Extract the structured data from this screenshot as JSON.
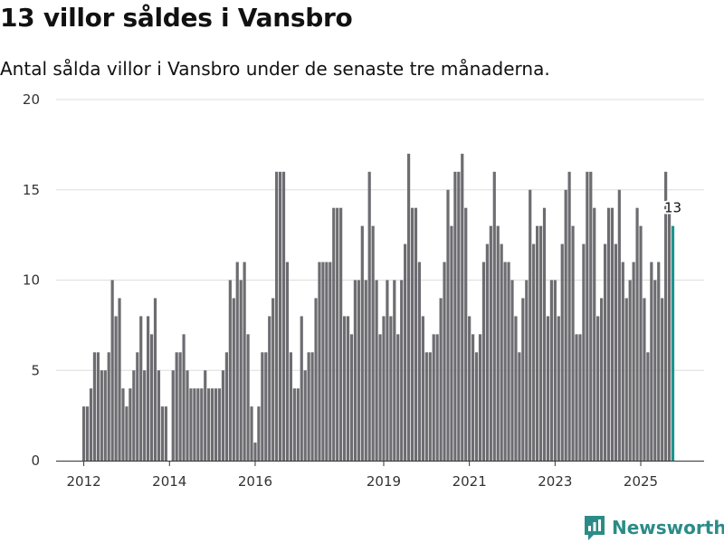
{
  "title": "13 villor såldes i Vansbro",
  "subtitle": "Antal sålda villor i Vansbro under de senaste tre månaderna.",
  "brand": "Newsworthy",
  "colors": {
    "bar": "#6d6c71",
    "highlight": "#1a9490",
    "grid": "#dddddd",
    "brand": "#2b8c87"
  },
  "chart_data": {
    "type": "bar",
    "title": "13 villor såldes i Vansbro",
    "xlabel": "",
    "ylabel": "",
    "ylim": [
      0,
      20
    ],
    "yticks": [
      0,
      5,
      10,
      15,
      20
    ],
    "xticks": [
      "2012",
      "2014",
      "2016",
      "2019",
      "2021",
      "2023",
      "2025"
    ],
    "grid": true,
    "start_month": "2012-01",
    "values": [
      3,
      3,
      4,
      6,
      6,
      5,
      5,
      6,
      10,
      8,
      9,
      4,
      3,
      4,
      5,
      6,
      8,
      5,
      8,
      7,
      9,
      5,
      3,
      3,
      0,
      5,
      6,
      6,
      7,
      5,
      4,
      4,
      4,
      4,
      5,
      4,
      4,
      4,
      4,
      5,
      6,
      10,
      9,
      11,
      10,
      11,
      7,
      3,
      1,
      3,
      6,
      6,
      8,
      9,
      16,
      16,
      16,
      11,
      6,
      4,
      4,
      8,
      5,
      6,
      6,
      9,
      11,
      11,
      11,
      11,
      14,
      14,
      14,
      8,
      8,
      7,
      10,
      10,
      13,
      10,
      16,
      13,
      10,
      7,
      8,
      10,
      8,
      10,
      7,
      10,
      12,
      17,
      14,
      14,
      11,
      8,
      6,
      6,
      7,
      7,
      9,
      11,
      15,
      13,
      16,
      16,
      17,
      14,
      8,
      7,
      6,
      7,
      11,
      12,
      13,
      16,
      13,
      12,
      11,
      11,
      10,
      8,
      6,
      9,
      10,
      15,
      12,
      13,
      13,
      14,
      8,
      10,
      10,
      8,
      12,
      15,
      16,
      13,
      7,
      7,
      12,
      16,
      16,
      14,
      8,
      9,
      12,
      14,
      14,
      12,
      15,
      11,
      9,
      10,
      11,
      14,
      13,
      9,
      6,
      11,
      10,
      11,
      9,
      16,
      14,
      13
    ],
    "highlight_last": true,
    "last_label": "13"
  }
}
